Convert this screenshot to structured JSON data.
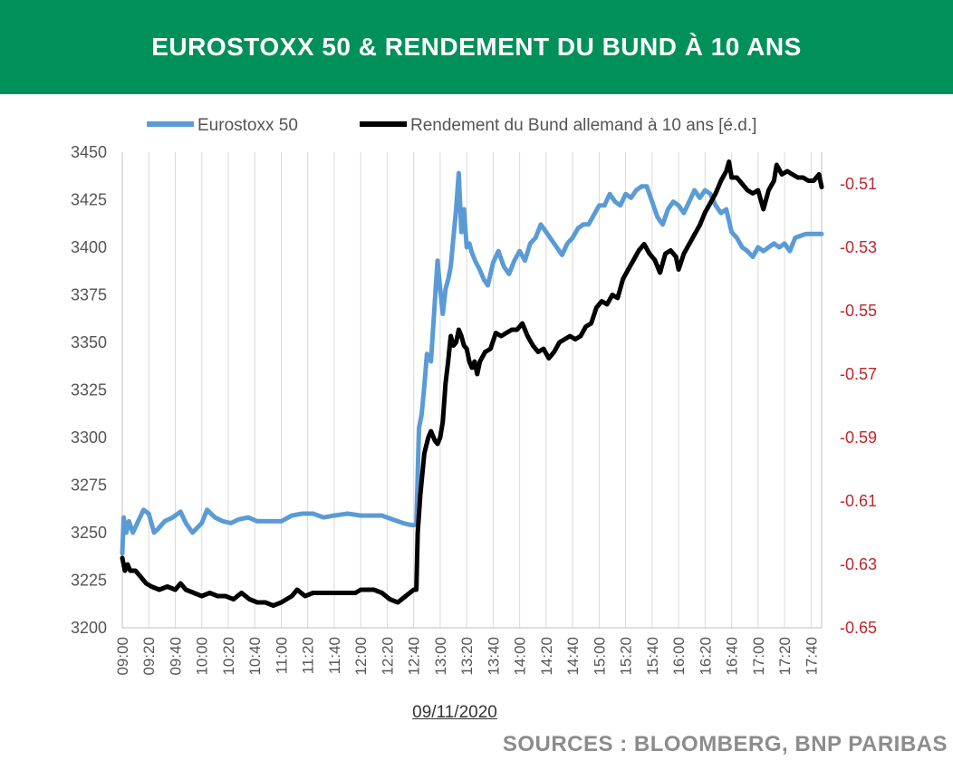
{
  "header": {
    "title": "EUROSTOXX 50 & RENDEMENT DU BUND À 10 ANS"
  },
  "footer": {
    "date": "09/11/2020",
    "sources": "SOURCES : BLOOMBERG, BNP PARIBAS"
  },
  "colors": {
    "header_bg": "#00905a",
    "eurostoxx": "#5b9bd5",
    "bund": "#000000",
    "right_axis": "#c0262d",
    "grid": "#d9d9d9"
  },
  "chart_data": {
    "type": "line",
    "title": "EUROSTOXX 50 & RENDEMENT DU BUND À 10 ANS",
    "xlabel": "09/11/2020",
    "x_ticks": [
      "09:00",
      "09:20",
      "09:40",
      "10:00",
      "10:20",
      "10:40",
      "11:00",
      "11:20",
      "11:40",
      "12:00",
      "12:20",
      "12:40",
      "13:00",
      "13:20",
      "13:40",
      "14:00",
      "14:20",
      "14:40",
      "15:00",
      "15:20",
      "15:40",
      "16:00",
      "16:20",
      "16:40",
      "17:00",
      "17:20",
      "17:40"
    ],
    "x_range": [
      "09:00",
      "17:48"
    ],
    "left_axis": {
      "ylim": [
        3200,
        3450
      ],
      "ticks": [
        "3200",
        "3225",
        "3250",
        "3275",
        "3300",
        "3325",
        "3350",
        "3375",
        "3400",
        "3425",
        "3450"
      ]
    },
    "right_axis": {
      "ylim": [
        -0.65,
        -0.5
      ],
      "ticks": [
        "-0.65",
        "-0.63",
        "-0.61",
        "-0.59",
        "-0.57",
        "-0.55",
        "-0.53",
        "-0.51"
      ]
    },
    "grid": "vertical",
    "legend_position": "top",
    "series": [
      {
        "name": "Eurostoxx 50",
        "axis": "left",
        "color": "#5b9bd5",
        "points": [
          [
            "09:00",
            3239
          ],
          [
            "09:01",
            3258
          ],
          [
            "09:03",
            3250
          ],
          [
            "09:05",
            3256
          ],
          [
            "09:08",
            3250
          ],
          [
            "09:12",
            3256
          ],
          [
            "09:16",
            3262
          ],
          [
            "09:20",
            3260
          ],
          [
            "09:24",
            3250
          ],
          [
            "09:27",
            3252
          ],
          [
            "09:32",
            3256
          ],
          [
            "09:38",
            3258
          ],
          [
            "09:44",
            3261
          ],
          [
            "09:48",
            3255
          ],
          [
            "09:53",
            3250
          ],
          [
            "10:00",
            3255
          ],
          [
            "10:04",
            3262
          ],
          [
            "10:10",
            3258
          ],
          [
            "10:16",
            3256
          ],
          [
            "10:22",
            3255
          ],
          [
            "10:28",
            3257
          ],
          [
            "10:35",
            3258
          ],
          [
            "10:42",
            3256
          ],
          [
            "10:50",
            3256
          ],
          [
            "11:00",
            3256
          ],
          [
            "11:08",
            3259
          ],
          [
            "11:16",
            3260
          ],
          [
            "11:24",
            3260
          ],
          [
            "11:32",
            3258
          ],
          [
            "11:40",
            3259
          ],
          [
            "11:50",
            3260
          ],
          [
            "12:00",
            3259
          ],
          [
            "12:08",
            3259
          ],
          [
            "12:16",
            3259
          ],
          [
            "12:24",
            3257
          ],
          [
            "12:32",
            3255
          ],
          [
            "12:38",
            3254
          ],
          [
            "12:42",
            3254
          ],
          [
            "12:44",
            3305
          ],
          [
            "12:46",
            3312
          ],
          [
            "12:48",
            3327
          ],
          [
            "12:50",
            3344
          ],
          [
            "12:53",
            3340
          ],
          [
            "12:56",
            3372
          ],
          [
            "12:58",
            3393
          ],
          [
            "13:00",
            3378
          ],
          [
            "13:02",
            3365
          ],
          [
            "13:04",
            3378
          ],
          [
            "13:06",
            3383
          ],
          [
            "13:08",
            3390
          ],
          [
            "13:10",
            3405
          ],
          [
            "13:12",
            3420
          ],
          [
            "13:14",
            3439
          ],
          [
            "13:16",
            3408
          ],
          [
            "13:18",
            3420
          ],
          [
            "13:20",
            3400
          ],
          [
            "13:22",
            3402
          ],
          [
            "13:24",
            3397
          ],
          [
            "13:27",
            3392
          ],
          [
            "13:30",
            3388
          ],
          [
            "13:33",
            3383
          ],
          [
            "13:36",
            3380
          ],
          [
            "13:40",
            3392
          ],
          [
            "13:44",
            3398
          ],
          [
            "13:48",
            3390
          ],
          [
            "13:52",
            3386
          ],
          [
            "13:56",
            3393
          ],
          [
            "14:00",
            3398
          ],
          [
            "14:04",
            3393
          ],
          [
            "14:08",
            3402
          ],
          [
            "14:12",
            3405
          ],
          [
            "14:16",
            3412
          ],
          [
            "14:20",
            3408
          ],
          [
            "14:24",
            3404
          ],
          [
            "14:28",
            3400
          ],
          [
            "14:32",
            3396
          ],
          [
            "14:36",
            3402
          ],
          [
            "14:40",
            3405
          ],
          [
            "14:44",
            3410
          ],
          [
            "14:48",
            3412
          ],
          [
            "14:52",
            3412
          ],
          [
            "14:56",
            3417
          ],
          [
            "15:00",
            3422
          ],
          [
            "15:04",
            3422
          ],
          [
            "15:08",
            3428
          ],
          [
            "15:12",
            3424
          ],
          [
            "15:16",
            3422
          ],
          [
            "15:20",
            3428
          ],
          [
            "15:24",
            3426
          ],
          [
            "15:28",
            3430
          ],
          [
            "15:32",
            3432
          ],
          [
            "15:36",
            3432
          ],
          [
            "15:40",
            3424
          ],
          [
            "15:44",
            3416
          ],
          [
            "15:48",
            3412
          ],
          [
            "15:52",
            3420
          ],
          [
            "15:56",
            3424
          ],
          [
            "16:00",
            3422
          ],
          [
            "16:04",
            3418
          ],
          [
            "16:08",
            3424
          ],
          [
            "16:12",
            3430
          ],
          [
            "16:16",
            3426
          ],
          [
            "16:20",
            3430
          ],
          [
            "16:24",
            3428
          ],
          [
            "16:28",
            3422
          ],
          [
            "16:32",
            3418
          ],
          [
            "16:36",
            3420
          ],
          [
            "16:40",
            3408
          ],
          [
            "16:44",
            3405
          ],
          [
            "16:48",
            3400
          ],
          [
            "16:52",
            3398
          ],
          [
            "16:56",
            3395
          ],
          [
            "17:00",
            3400
          ],
          [
            "17:04",
            3398
          ],
          [
            "17:08",
            3400
          ],
          [
            "17:12",
            3402
          ],
          [
            "17:16",
            3400
          ],
          [
            "17:20",
            3402
          ],
          [
            "17:24",
            3398
          ],
          [
            "17:28",
            3405
          ],
          [
            "17:32",
            3406
          ],
          [
            "17:36",
            3407
          ],
          [
            "17:40",
            3407
          ],
          [
            "17:48",
            3407
          ]
        ]
      },
      {
        "name": "Rendement du Bund allemand à 10 ans [é.d.]",
        "axis": "right",
        "color": "#000000",
        "points": [
          [
            "09:00",
            -0.628
          ],
          [
            "09:02",
            -0.632
          ],
          [
            "09:04",
            -0.63
          ],
          [
            "09:06",
            -0.632
          ],
          [
            "09:10",
            -0.632
          ],
          [
            "09:14",
            -0.634
          ],
          [
            "09:18",
            -0.636
          ],
          [
            "09:22",
            -0.637
          ],
          [
            "09:28",
            -0.638
          ],
          [
            "09:34",
            -0.637
          ],
          [
            "09:40",
            -0.638
          ],
          [
            "09:44",
            -0.636
          ],
          [
            "09:48",
            -0.638
          ],
          [
            "09:54",
            -0.639
          ],
          [
            "10:00",
            -0.64
          ],
          [
            "10:06",
            -0.639
          ],
          [
            "10:12",
            -0.64
          ],
          [
            "10:18",
            -0.64
          ],
          [
            "10:24",
            -0.641
          ],
          [
            "10:30",
            -0.639
          ],
          [
            "10:36",
            -0.641
          ],
          [
            "10:42",
            -0.642
          ],
          [
            "10:48",
            -0.642
          ],
          [
            "10:54",
            -0.643
          ],
          [
            "11:00",
            -0.642
          ],
          [
            "11:04",
            -0.641
          ],
          [
            "11:08",
            -0.64
          ],
          [
            "11:12",
            -0.638
          ],
          [
            "11:18",
            -0.64
          ],
          [
            "11:24",
            -0.639
          ],
          [
            "11:32",
            -0.639
          ],
          [
            "11:40",
            -0.639
          ],
          [
            "11:48",
            -0.639
          ],
          [
            "11:56",
            -0.639
          ],
          [
            "12:00",
            -0.638
          ],
          [
            "12:04",
            -0.638
          ],
          [
            "12:10",
            -0.638
          ],
          [
            "12:16",
            -0.639
          ],
          [
            "12:22",
            -0.641
          ],
          [
            "12:28",
            -0.642
          ],
          [
            "12:34",
            -0.64
          ],
          [
            "12:40",
            -0.638
          ],
          [
            "12:42",
            -0.638
          ],
          [
            "12:43",
            -0.62
          ],
          [
            "12:45",
            -0.608
          ],
          [
            "12:48",
            -0.595
          ],
          [
            "12:51",
            -0.59
          ],
          [
            "12:53",
            -0.588
          ],
          [
            "12:56",
            -0.591
          ],
          [
            "12:58",
            -0.592
          ],
          [
            "13:00",
            -0.59
          ],
          [
            "13:02",
            -0.585
          ],
          [
            "13:04",
            -0.573
          ],
          [
            "13:06",
            -0.566
          ],
          [
            "13:08",
            -0.558
          ],
          [
            "13:10",
            -0.561
          ],
          [
            "13:12",
            -0.56
          ],
          [
            "13:14",
            -0.556
          ],
          [
            "13:16",
            -0.558
          ],
          [
            "13:18",
            -0.561
          ],
          [
            "13:20",
            -0.562
          ],
          [
            "13:22",
            -0.566
          ],
          [
            "13:24",
            -0.568
          ],
          [
            "13:26",
            -0.566
          ],
          [
            "13:28",
            -0.57
          ],
          [
            "13:30",
            -0.566
          ],
          [
            "13:34",
            -0.563
          ],
          [
            "13:38",
            -0.562
          ],
          [
            "13:42",
            -0.557
          ],
          [
            "13:46",
            -0.558
          ],
          [
            "13:50",
            -0.557
          ],
          [
            "13:54",
            -0.556
          ],
          [
            "13:58",
            -0.556
          ],
          [
            "14:02",
            -0.554
          ],
          [
            "14:06",
            -0.558
          ],
          [
            "14:10",
            -0.561
          ],
          [
            "14:14",
            -0.563
          ],
          [
            "14:18",
            -0.562
          ],
          [
            "14:22",
            -0.565
          ],
          [
            "14:26",
            -0.563
          ],
          [
            "14:30",
            -0.56
          ],
          [
            "14:34",
            -0.559
          ],
          [
            "14:38",
            -0.558
          ],
          [
            "14:42",
            -0.559
          ],
          [
            "14:46",
            -0.558
          ],
          [
            "14:50",
            -0.555
          ],
          [
            "14:54",
            -0.554
          ],
          [
            "14:58",
            -0.549
          ],
          [
            "15:02",
            -0.547
          ],
          [
            "15:06",
            -0.548
          ],
          [
            "15:10",
            -0.545
          ],
          [
            "15:14",
            -0.546
          ],
          [
            "15:18",
            -0.54
          ],
          [
            "15:22",
            -0.537
          ],
          [
            "15:26",
            -0.534
          ],
          [
            "15:30",
            -0.531
          ],
          [
            "15:34",
            -0.529
          ],
          [
            "15:38",
            -0.532
          ],
          [
            "15:42",
            -0.534
          ],
          [
            "15:46",
            -0.538
          ],
          [
            "15:50",
            -0.532
          ],
          [
            "15:54",
            -0.531
          ],
          [
            "15:58",
            -0.533
          ],
          [
            "16:00",
            -0.537
          ],
          [
            "16:04",
            -0.532
          ],
          [
            "16:08",
            -0.529
          ],
          [
            "16:12",
            -0.526
          ],
          [
            "16:16",
            -0.523
          ],
          [
            "16:20",
            -0.519
          ],
          [
            "16:24",
            -0.516
          ],
          [
            "16:28",
            -0.513
          ],
          [
            "16:32",
            -0.509
          ],
          [
            "16:36",
            -0.506
          ],
          [
            "16:38",
            -0.503
          ],
          [
            "16:40",
            -0.508
          ],
          [
            "16:44",
            -0.508
          ],
          [
            "16:48",
            -0.51
          ],
          [
            "16:52",
            -0.512
          ],
          [
            "16:56",
            -0.513
          ],
          [
            "17:00",
            -0.512
          ],
          [
            "17:04",
            -0.518
          ],
          [
            "17:08",
            -0.512
          ],
          [
            "17:12",
            -0.509
          ],
          [
            "17:14",
            -0.504
          ],
          [
            "17:18",
            -0.507
          ],
          [
            "17:22",
            -0.506
          ],
          [
            "17:26",
            -0.507
          ],
          [
            "17:30",
            -0.508
          ],
          [
            "17:34",
            -0.508
          ],
          [
            "17:38",
            -0.509
          ],
          [
            "17:42",
            -0.509
          ],
          [
            "17:46",
            -0.507
          ],
          [
            "17:48",
            -0.511
          ]
        ]
      }
    ]
  }
}
